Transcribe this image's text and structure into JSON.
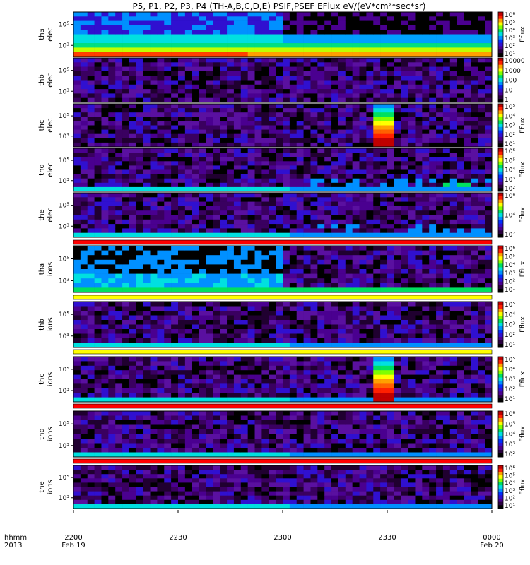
{
  "chart_data": {
    "type": "heatmap",
    "title": "P5, P1, P2, P3, P4  (TH-A,B,C,D,E) PSIF,PSEF EFlux eV/(eV*cm²*sec*sr)",
    "time_axis": {
      "row_label_1": "hhmm",
      "row_label_2": "2013",
      "ticks": [
        {
          "value": "2200",
          "date": "Feb 19"
        },
        {
          "value": "2230",
          "date": ""
        },
        {
          "value": "2300",
          "date": ""
        },
        {
          "value": "2330",
          "date": ""
        },
        {
          "value": "0000",
          "date": "Feb 20"
        }
      ]
    },
    "panels": [
      {
        "ylabel_1": "tha",
        "ylabel_2": "elec",
        "yticks": [
          "10⁵",
          "10³"
        ],
        "cb_label": "Eflux",
        "cb_ticks": [
          "10⁶",
          "10⁵",
          "10⁴",
          "10³",
          "10²",
          "10¹"
        ],
        "cb_bounds": [
          1,
          1000000
        ],
        "stripe": ""
      },
      {
        "ylabel_1": "thb",
        "ylabel_2": "elec",
        "yticks": [
          "10⁵",
          "10³"
        ],
        "cb_label": "",
        "cb_ticks": [
          "10000",
          "1000",
          "100",
          "10",
          "1"
        ],
        "cb_bounds": [
          1,
          10000
        ],
        "stripe": ""
      },
      {
        "ylabel_1": "thc",
        "ylabel_2": "elec",
        "yticks": [
          "10⁵",
          "10³"
        ],
        "cb_label": "Eflux",
        "cb_ticks": [
          "10⁵",
          "10⁴",
          "10³",
          "10²",
          "10¹"
        ],
        "cb_bounds": [
          1,
          100000
        ],
        "stripe": ""
      },
      {
        "ylabel_1": "thd",
        "ylabel_2": "elec",
        "yticks": [
          "10⁵",
          "10³"
        ],
        "cb_label": "Eflux",
        "cb_ticks": [
          "10⁶",
          "10⁵",
          "10⁴",
          "10³",
          "10²"
        ],
        "cb_bounds": [
          100,
          1000000
        ],
        "stripe": ""
      },
      {
        "ylabel_1": "the",
        "ylabel_2": "elec",
        "yticks": [
          "10⁵",
          "10³"
        ],
        "cb_label": "Eflux",
        "cb_ticks": [
          "10⁶",
          "10⁴",
          "10²"
        ],
        "cb_bounds": [
          10,
          1000000
        ],
        "stripe": "red"
      },
      {
        "ylabel_1": "tha",
        "ylabel_2": "ions",
        "yticks": [
          "10⁵",
          "10³"
        ],
        "cb_label": "Eflux",
        "cb_ticks": [
          "10⁶",
          "10⁵",
          "10⁴",
          "10³",
          "10²",
          "10¹"
        ],
        "cb_bounds": [
          1,
          1000000
        ],
        "stripe": "yellow"
      },
      {
        "ylabel_1": "thb",
        "ylabel_2": "ions",
        "yticks": [
          "10⁵",
          "10³"
        ],
        "cb_label": "Eflux",
        "cb_ticks": [
          "10⁵",
          "10⁴",
          "10³",
          "10²",
          "10¹"
        ],
        "cb_bounds": [
          1,
          100000
        ],
        "stripe": "yellow"
      },
      {
        "ylabel_1": "thc",
        "ylabel_2": "ions",
        "yticks": [
          "10⁵",
          "10³"
        ],
        "cb_label": "Eflux",
        "cb_ticks": [
          "10⁵",
          "10⁴",
          "10³",
          "10²",
          "10¹"
        ],
        "cb_bounds": [
          1,
          100000
        ],
        "stripe": "red"
      },
      {
        "ylabel_1": "thd",
        "ylabel_2": "ions",
        "yticks": [
          "10⁵",
          "10³"
        ],
        "cb_label": "Eflux",
        "cb_ticks": [
          "10⁶",
          "10⁵",
          "10⁴",
          "10³",
          "10²"
        ],
        "cb_bounds": [
          100,
          1000000
        ],
        "stripe": "red"
      },
      {
        "ylabel_1": "the",
        "ylabel_2": "ions",
        "yticks": [
          "10⁵",
          "10³"
        ],
        "cb_label": "Eflux",
        "cb_ticks": [
          "10⁶",
          "10⁵",
          "10⁴",
          "10³",
          "10²",
          "10¹"
        ],
        "cb_bounds": [
          1,
          1000000
        ],
        "stripe": ""
      }
    ],
    "colors": {
      "colorbar_scale": [
        "#000000",
        "#2a0040",
        "#4a0090",
        "#3010d0",
        "#0030ff",
        "#0090ff",
        "#00e0e0",
        "#00e060",
        "#80ff00",
        "#ffff00",
        "#ffa000",
        "#ff2000",
        "#c00000"
      ],
      "stripe_red": "#ff0000",
      "stripe_yellow": "#ffff00"
    }
  }
}
